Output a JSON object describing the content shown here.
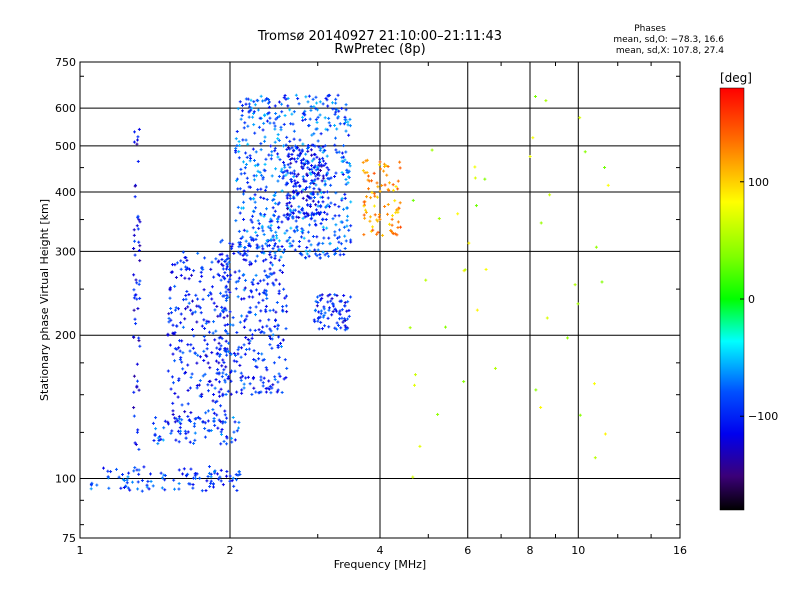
{
  "header": {
    "title_line1": "Tromsø 20140927 21:10:00–21:11:43",
    "title_line2": "RwPretec (8p)",
    "stats_heading": "Phases",
    "stats_o": "mean, sd,O: −78.3, 16.6",
    "stats_x": "mean, sd,X: 107.8, 27.4"
  },
  "colorbar": {
    "label": "[deg]",
    "tick_labels": [
      "100",
      "0",
      "−100"
    ],
    "tick_values": [
      100,
      0,
      -100
    ],
    "range": [
      -180,
      180
    ]
  },
  "chart_data": {
    "type": "scatter",
    "xlabel": "Frequency [MHz]",
    "ylabel": "Stationary phase Virtual Height [km]",
    "x_scale": "log",
    "y_scale": "log",
    "xlim": [
      1,
      16
    ],
    "ylim": [
      75,
      750
    ],
    "x_ticks": [
      1,
      2,
      4,
      6,
      8,
      10,
      16
    ],
    "x_tick_labels": [
      "1",
      "2",
      "4",
      "6",
      "8",
      "10",
      "16"
    ],
    "y_ticks": [
      75,
      100,
      200,
      300,
      400,
      500,
      600,
      750
    ],
    "y_tick_labels": [
      "75",
      "100",
      "200",
      "300",
      "400",
      "500",
      "600",
      "750"
    ],
    "grid": true,
    "clusters": [
      {
        "desc": "E-region near 100 km",
        "x_range": [
          1.05,
          2.1
        ],
        "y_range": [
          94,
          106
        ],
        "phase": -90,
        "points": 110
      },
      {
        "desc": "E sporadic trace",
        "x_range": [
          1.4,
          2.1
        ],
        "y_range": [
          118,
          135
        ],
        "phase": -85,
        "points": 70
      },
      {
        "desc": "F1 lower trace",
        "x_range": [
          1.5,
          2.0
        ],
        "y_range": [
          130,
          300
        ],
        "phase": -100,
        "points": 260
      },
      {
        "desc": "F1 upper trace",
        "x_range": [
          1.9,
          2.6
        ],
        "y_range": [
          150,
          320
        ],
        "phase": -95,
        "points": 320
      },
      {
        "desc": "F2 O-mode",
        "x_range": [
          2.05,
          3.5
        ],
        "y_range": [
          290,
          640
        ],
        "phase": -80,
        "points": 620
      },
      {
        "desc": "F2 cusp",
        "x_range": [
          2.6,
          3.1
        ],
        "y_range": [
          350,
          500
        ],
        "phase": -110,
        "points": 140
      },
      {
        "desc": "F2 X-mode",
        "x_range": [
          3.7,
          4.4
        ],
        "y_range": [
          320,
          470
        ],
        "phase": 120,
        "points": 90
      },
      {
        "desc": "Loop near 3 MHz",
        "x_range": [
          2.95,
          3.5
        ],
        "y_range": [
          205,
          245
        ],
        "phase": -100,
        "points": 80
      },
      {
        "desc": "Vertical trace at 1.3 MHz",
        "x_range": [
          1.28,
          1.32
        ],
        "y_range": [
          110,
          610
        ],
        "phase": -110,
        "points": 60
      },
      {
        "desc": "Scattered high-frequency echoes",
        "x_range": [
          4.5,
          11.5
        ],
        "y_range": [
          100,
          640
        ],
        "phase": 60,
        "points": 45
      }
    ]
  }
}
